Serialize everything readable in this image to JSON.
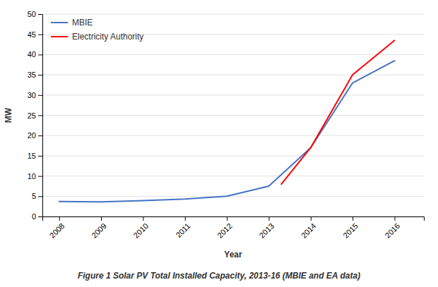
{
  "chart_data": {
    "type": "line",
    "caption": "Figure 1 Solar PV Total Installed Capacity, 2013-16 (MBIE and EA data)",
    "x_label": "Year",
    "y_label": "MW",
    "series": [
      {
        "name": "MBIE",
        "color": "#4472C4",
        "x": [
          2008,
          2009,
          2010,
          2011,
          2012,
          2013,
          2014,
          2015,
          2016
        ],
        "values": [
          3.7,
          3.6,
          3.9,
          4.3,
          5.0,
          7.5,
          17.0,
          33.0,
          38.5
        ]
      },
      {
        "name": "Electricity Authority",
        "color": "#FF0000",
        "x": [
          2013.3,
          2014,
          2015,
          2016
        ],
        "values": [
          8.0,
          17.0,
          35.0,
          43.5
        ]
      }
    ],
    "xlim": [
      2007.6,
      2016.7
    ],
    "xticks": [
      2008,
      2009,
      2010,
      2011,
      2012,
      2013,
      2014,
      2015,
      2016
    ],
    "ylim": [
      0,
      50
    ],
    "yticks": [
      0,
      5,
      10,
      15,
      20,
      25,
      30,
      35,
      40,
      45,
      50
    ],
    "grid": true,
    "legend": "upper left"
  }
}
